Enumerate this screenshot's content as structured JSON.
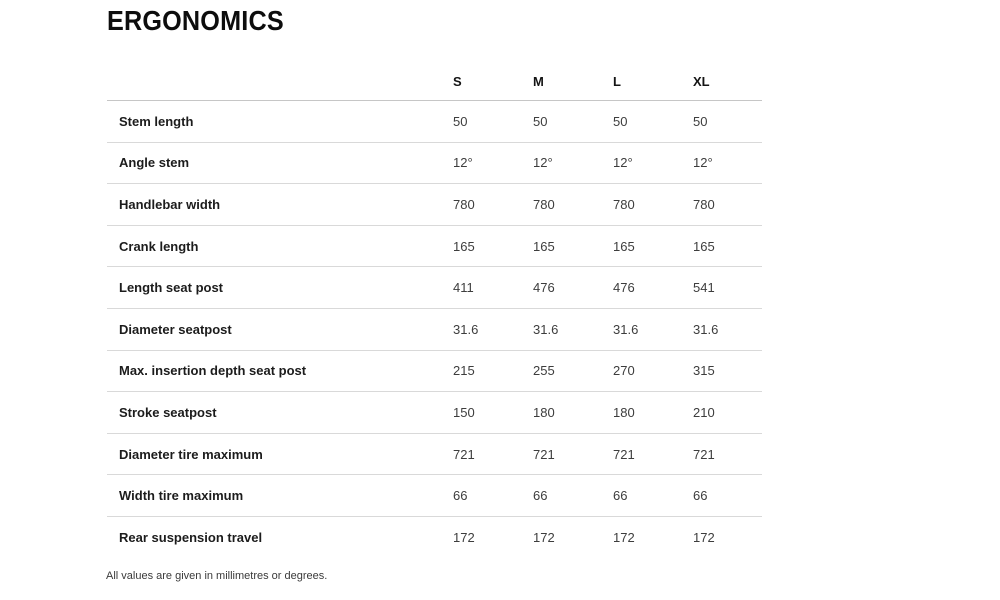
{
  "title": "ERGONOMICS",
  "footnote": "All values are given in millimetres or degrees.",
  "chart_data": {
    "type": "table",
    "title": "ERGONOMICS",
    "columns": [
      "S",
      "M",
      "L",
      "XL"
    ],
    "rows": [
      {
        "label": "Stem length",
        "values": [
          "50",
          "50",
          "50",
          "50"
        ]
      },
      {
        "label": "Angle stem",
        "values": [
          "12°",
          "12°",
          "12°",
          "12°"
        ]
      },
      {
        "label": "Handlebar width",
        "values": [
          "780",
          "780",
          "780",
          "780"
        ]
      },
      {
        "label": "Crank length",
        "values": [
          "165",
          "165",
          "165",
          "165"
        ]
      },
      {
        "label": "Length seat post",
        "values": [
          "411",
          "476",
          "476",
          "541"
        ]
      },
      {
        "label": "Diameter seatpost",
        "values": [
          "31.6",
          "31.6",
          "31.6",
          "31.6"
        ]
      },
      {
        "label": "Max. insertion depth seat post",
        "values": [
          "215",
          "255",
          "270",
          "315"
        ]
      },
      {
        "label": "Stroke seatpost",
        "values": [
          "150",
          "180",
          "180",
          "210"
        ]
      },
      {
        "label": "Diameter tire maximum",
        "values": [
          "721",
          "721",
          "721",
          "721"
        ]
      },
      {
        "label": "Width tire maximum",
        "values": [
          "66",
          "66",
          "66",
          "66"
        ]
      },
      {
        "label": "Rear suspension travel",
        "values": [
          "172",
          "172",
          "172",
          "172"
        ]
      }
    ],
    "footnote": "All values are given in millimetres or degrees.",
    "layout": {
      "grid": "horizontal-dividers-only",
      "values_alignment": "left"
    }
  },
  "colors": {
    "background": "#ffffff",
    "title_text": "#0d0d0d",
    "label_text": "#1c1c1c",
    "value_text": "#3d3d3d",
    "header_divider": "#c6c6c6",
    "row_divider": "#d9d9d9"
  }
}
